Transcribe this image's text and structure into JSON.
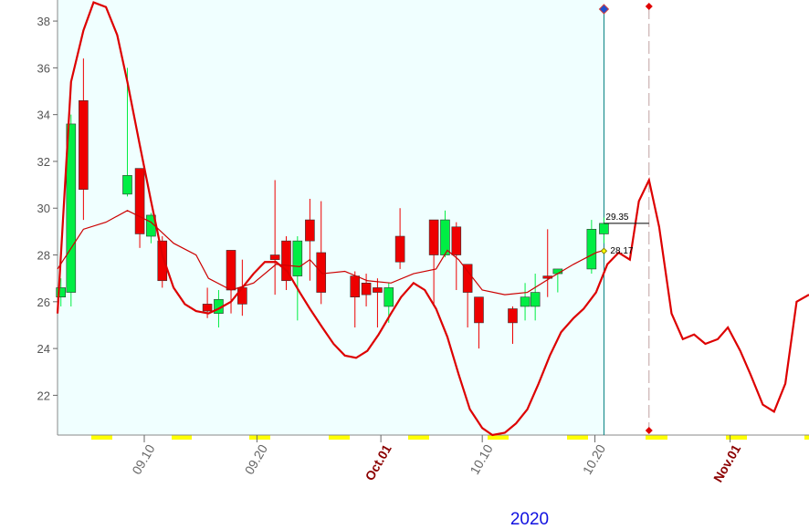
{
  "chart_data": {
    "type": "candlestick",
    "year_label": "2020",
    "xlim": [
      2.3,
      69.0
    ],
    "ylim": [
      20.3,
      38.9
    ],
    "xticks": [
      {
        "value": 10,
        "label": "09.10"
      },
      {
        "value": 20,
        "label": "09.20"
      },
      {
        "value": 31,
        "label": "Oct.01"
      },
      {
        "value": 40,
        "label": "10.10"
      },
      {
        "value": 50,
        "label": "10.20"
      },
      {
        "value": 62,
        "label": "Nov.01"
      }
    ],
    "yticks": [
      22,
      24,
      26,
      28,
      30,
      32,
      34,
      36,
      38
    ],
    "up_color": "#00ee44",
    "down_color": "#ee0000",
    "candles": {
      "x": [
        2.6,
        3.5,
        4.6,
        8.5,
        9.6,
        10.6,
        11.6,
        15.6,
        16.6,
        17.7,
        18.7,
        21.6,
        22.6,
        23.6,
        24.7,
        25.7,
        28.7,
        29.7,
        30.7,
        31.7,
        32.7,
        35.7,
        36.7,
        37.7,
        38.7,
        39.7,
        42.7,
        43.8,
        44.7,
        45.8,
        46.7,
        49.7,
        50.8
      ],
      "open": [
        26.2,
        26.4,
        34.6,
        30.6,
        31.7,
        28.8,
        28.6,
        25.9,
        25.5,
        28.2,
        26.6,
        28.0,
        28.6,
        27.1,
        29.5,
        28.1,
        27.1,
        26.8,
        26.6,
        25.8,
        28.8,
        29.5,
        28.0,
        29.2,
        27.6,
        26.2,
        25.7,
        25.8,
        25.8,
        27.1,
        27.2,
        27.4,
        28.9
      ],
      "high": [
        27.0,
        34.0,
        36.4,
        36.0,
        31.7,
        29.8,
        28.8,
        26.6,
        26.5,
        28.2,
        27.8,
        31.2,
        28.8,
        28.8,
        30.4,
        30.3,
        27.3,
        27.2,
        27.0,
        26.8,
        30.0,
        29.5,
        29.9,
        29.4,
        27.6,
        26.2,
        25.8,
        26.8,
        27.2,
        29.1,
        27.4,
        29.5,
        29.6
      ],
      "low": [
        25.8,
        25.8,
        29.5,
        30.5,
        28.3,
        28.5,
        26.6,
        25.3,
        24.9,
        25.5,
        25.4,
        26.3,
        26.5,
        25.2,
        26.9,
        25.9,
        24.9,
        25.8,
        24.9,
        25.1,
        27.4,
        25.8,
        27.9,
        26.5,
        24.9,
        24.0,
        24.2,
        25.2,
        25.2,
        26.2,
        26.4,
        27.2,
        28.5
      ],
      "close": [
        26.6,
        33.6,
        30.8,
        31.4,
        28.9,
        29.7,
        26.9,
        25.6,
        26.1,
        26.5,
        25.9,
        27.8,
        26.9,
        28.6,
        28.6,
        26.4,
        26.2,
        26.3,
        26.4,
        26.6,
        27.7,
        28.0,
        29.5,
        28.0,
        26.4,
        25.1,
        25.1,
        26.2,
        26.4,
        27.0,
        27.4,
        29.1,
        29.35
      ]
    },
    "lines": [
      {
        "color": "#dd0000",
        "width": 2.2,
        "x": [
          2.3,
          3.5,
          4.6,
          5.5,
          6.6,
          7.6,
          8.5,
          9.6,
          10.6,
          11.6,
          12.6,
          13.6,
          14.6,
          15.7,
          16.6,
          17.7,
          18.7,
          19.7,
          20.7,
          21.7,
          22.7,
          23.8,
          24.7,
          25.8,
          26.8,
          27.8,
          28.8,
          29.8,
          30.8,
          31.9,
          32.8,
          33.9,
          34.9,
          35.9,
          36.9,
          37.9,
          38.9,
          40.0,
          40.9,
          42.0,
          43.0,
          44.0,
          45.0,
          46.0,
          47.0,
          48.1,
          49.0,
          50.1,
          51.1,
          52.1,
          53.1,
          53.9,
          54.8,
          55.7,
          56.8,
          57.8,
          58.8,
          59.8,
          60.9,
          61.8,
          62.9,
          63.8,
          64.9,
          65.9,
          66.9,
          67.9,
          69.0
        ],
        "values": [
          25.5,
          35.4,
          37.6,
          38.8,
          38.6,
          37.4,
          35.4,
          32.7,
          30.3,
          28.0,
          26.6,
          25.9,
          25.6,
          25.5,
          25.7,
          26.0,
          26.6,
          27.2,
          27.7,
          27.7,
          27.3,
          26.4,
          25.7,
          24.9,
          24.2,
          23.7,
          23.6,
          23.9,
          24.6,
          25.5,
          26.2,
          26.8,
          26.5,
          25.7,
          24.5,
          22.9,
          21.4,
          20.6,
          20.3,
          20.4,
          20.8,
          21.4,
          22.5,
          23.7,
          24.7,
          25.3,
          25.7,
          26.4,
          27.6,
          28.1,
          27.8,
          30.3,
          31.2,
          29.2,
          25.5,
          24.4,
          24.6,
          24.2,
          24.4,
          24.9,
          23.9,
          22.9,
          21.6,
          21.3,
          22.5,
          26.0,
          26.3
        ]
      },
      {
        "color": "#cc0000",
        "width": 1.2,
        "x": [
          2.3,
          4.6,
          6.6,
          8.5,
          10.6,
          12.6,
          14.6,
          15.7,
          17.7,
          19.7,
          21.7,
          23.8,
          24.7,
          25.8,
          27.8,
          29.8,
          31.9,
          33.9,
          35.9,
          36.9,
          37.9,
          40.0,
          42.0,
          44.0,
          46.0,
          48.1,
          50.1,
          50.8
        ],
        "values": [
          27.4,
          29.1,
          29.4,
          29.9,
          29.4,
          28.5,
          28.0,
          27.0,
          26.5,
          26.8,
          27.6,
          27.5,
          27.8,
          27.2,
          27.3,
          26.9,
          26.8,
          27.2,
          27.4,
          28.2,
          27.8,
          26.5,
          26.3,
          26.4,
          27.0,
          27.6,
          28.1,
          28.2
        ]
      }
    ],
    "cursor_x": 50.8,
    "forecast_x": 54.8,
    "last_price": 29.35,
    "average_price": 28.17
  }
}
